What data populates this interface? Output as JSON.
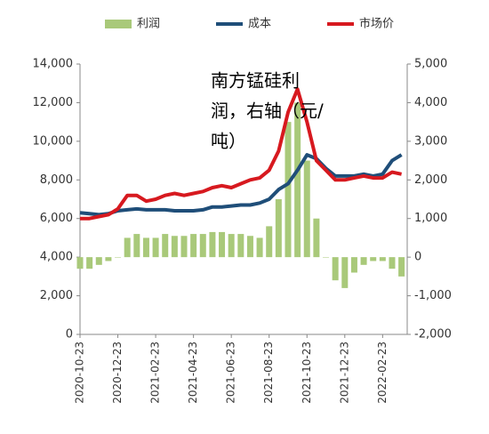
{
  "chart_data": {
    "type": "combo",
    "annotation": [
      "南方锰硅利",
      "润，右轴（元/",
      "吨）"
    ],
    "categories": [
      "2020-10-23",
      null,
      null,
      null,
      "2020-12-23",
      null,
      null,
      null,
      "2021-02-23",
      null,
      null,
      null,
      "2021-04-23",
      null,
      null,
      null,
      "2021-06-23",
      null,
      null,
      null,
      "2021-08-23",
      null,
      null,
      null,
      "2021-10-23",
      null,
      null,
      null,
      "2021-12-23",
      null,
      null,
      null,
      "2022-02-23",
      null,
      null
    ],
    "series": [
      {
        "name": "利润",
        "type": "bar",
        "axis": "y2",
        "color": "#a9c97a",
        "values": [
          -300,
          -300,
          -200,
          -100,
          0,
          500,
          600,
          500,
          500,
          600,
          550,
          550,
          600,
          600,
          650,
          650,
          600,
          600,
          550,
          500,
          800,
          1500,
          3500,
          4000,
          2500,
          1000,
          0,
          -600,
          -800,
          -400,
          -200,
          -100,
          -100,
          -300,
          -500
        ]
      },
      {
        "name": "成本",
        "type": "line",
        "color": "#1f4e79",
        "values": [
          6300,
          6250,
          6200,
          6250,
          6400,
          6450,
          6500,
          6450,
          6450,
          6450,
          6400,
          6400,
          6400,
          6450,
          6600,
          6600,
          6650,
          6700,
          6700,
          6800,
          7000,
          7500,
          7800,
          8500,
          9300,
          9100,
          8600,
          8200,
          8200,
          8200,
          8300,
          8200,
          8300,
          9000,
          9300
        ]
      },
      {
        "name": "市场价",
        "type": "line",
        "color": "#d7191f",
        "values": [
          6000,
          6000,
          6100,
          6200,
          6500,
          7200,
          7200,
          6900,
          7000,
          7200,
          7300,
          7200,
          7300,
          7400,
          7600,
          7700,
          7600,
          7800,
          8000,
          8100,
          8500,
          9500,
          11500,
          12700,
          11000,
          9000,
          8500,
          8000,
          8000,
          8100,
          8200,
          8100,
          8100,
          8400,
          8300
        ]
      }
    ],
    "ylim": [
      0,
      14000
    ],
    "yticks": [
      0,
      {
        "value": 2000,
        "label": "2,000"
      },
      {
        "value": 4000,
        "label": "4,000"
      },
      {
        "value": 6000,
        "label": "6,000"
      },
      {
        "value": 8000,
        "label": "8,000"
      },
      {
        "value": 10000,
        "label": "10,000"
      },
      {
        "value": 12000,
        "label": "12,000"
      },
      {
        "value": 14000,
        "label": "14,000"
      }
    ],
    "y2lim": [
      -2000,
      5000
    ],
    "y2ticks": [
      {
        "value": -2000,
        "label": "-2,000"
      },
      {
        "value": -1000,
        "label": "-1,000"
      },
      0,
      {
        "value": 1000,
        "label": "1,000"
      },
      {
        "value": 2000,
        "label": "2,000"
      },
      {
        "value": 3000,
        "label": "3,000"
      },
      {
        "value": 4000,
        "label": "4,000"
      },
      {
        "value": 5000,
        "label": "5,000"
      }
    ],
    "legend": "top"
  }
}
